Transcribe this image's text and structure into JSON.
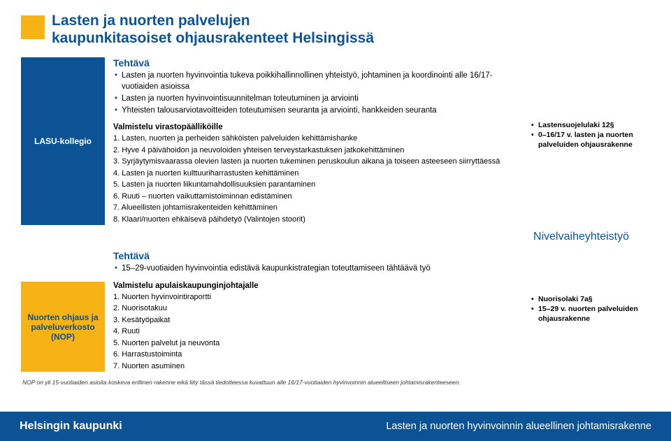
{
  "colors": {
    "blue": "#0b5394",
    "orange": "#f7b215",
    "orange_light": "#fbd98a",
    "orange_mid": "#f9c85a",
    "white": "#ffffff"
  },
  "title": "Lasten ja nuorten palvelujen\nkaupunkitasoiset ohjausrakenteet Helsingissä",
  "lasu": {
    "sidebar": "LASU-kollegio",
    "tehtava_heading": "Tehtävä",
    "tehtava": [
      "Lasten ja nuorten hyvinvointia tukeva poikkihallinnollinen yhteistyö, johtaminen ja koordinointi alle 16/17-vuotiaiden asioissa",
      "Lasten ja nuorten hyvinvointisuunnitelman toteutuminen ja arviointi",
      "Yhteisten talousarviotavoitteiden toteutumisen seuranta ja arviointi, hankkeiden seuranta"
    ],
    "subhead": "Valmistelu virastopäälliköille",
    "items": [
      "1. Lasten, nuorten ja perheiden sähköisten palveluiden kehittämishanke",
      "2. Hyve 4 päivähoidon ja neuvoloiden yhteisen terveystarkastuksen jatkokehittäminen",
      "3. Syrjäytymisvaarassa olevien lasten ja nuorten tukeminen peruskoulun aikana ja toiseen asteeseen siirryttäessä",
      "4. Lasten ja nuorten kulttuuriharrastusten kehittäminen",
      "5. Lasten ja nuorten liikuntamahdollisuuksien parantaminen",
      "6. Ruuti – nuorten vaikuttamistoiminnan edistäminen",
      "7. Alueellisten johtamisrakenteiden kehittäminen",
      "8. Klaari/nuorten ehkäisevä päihdetyö (Valintojen stoorit)"
    ],
    "right": [
      "Lastensuojelulaki 12§",
      "0–16/17 v. lasten ja nuorten palveluiden ohjausrakenne"
    ]
  },
  "nivel": "Nivelvaiheyhteistyö",
  "nop": {
    "tehtava_heading": "Tehtävä",
    "tehtava": [
      "15–29-vuotiaiden hyvinvointia edistävä kaupunkistrategian toteuttamiseen tähtäävä työ"
    ],
    "sidebar": "Nuorten ohjaus ja palveluverkosto (NOP)",
    "subhead": "Valmistelu apulaiskaupunginjohtajalle",
    "items": [
      "1. Nuorten hyvinvointiraportti",
      "2. Nuorisotakuu",
      "3. Kesätyöpaikat",
      "4. Ruuti",
      "5. Nuorten palvelut ja neuvonta",
      "6. Harrastustoiminta",
      "7. Nuorten asuminen"
    ],
    "right": [
      "Nuorisolaki 7a§",
      "15–29 v. nuorten palveluiden ohjausrakenne"
    ]
  },
  "footnote": "NOP on yli 15-vuotiaiden asioita koskeva erillinen rakenne eikä liity tässä tiedotteessa kuvattuun alle 16/17-vuotiaiden hyvinvoinnin alueelliseen johtamisrakenteeseen.",
  "footer": {
    "left": "Helsingin kaupunki",
    "right": "Lasten ja nuorten hyvinvoinnin alueellinen johtamisrakenne"
  }
}
